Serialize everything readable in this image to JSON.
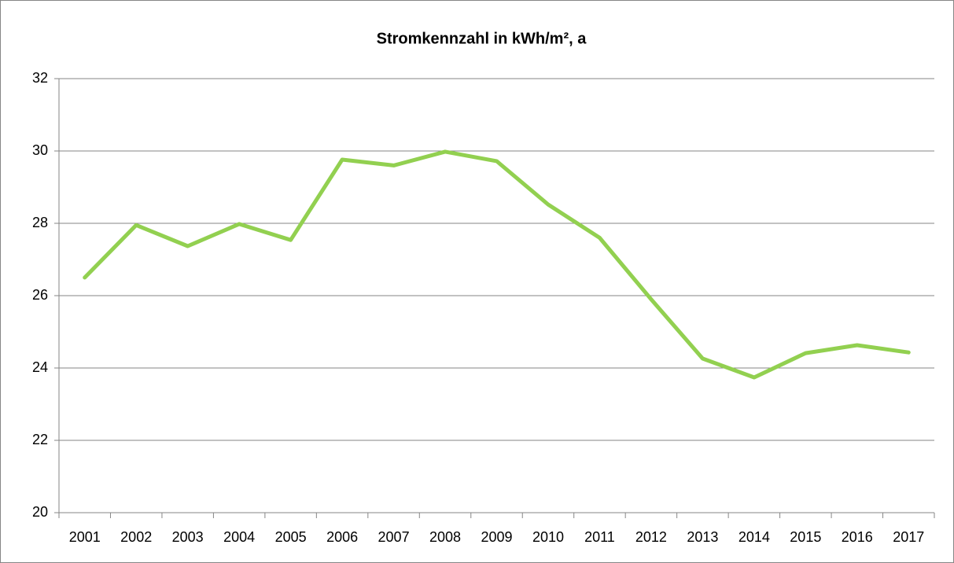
{
  "chart_data": {
    "type": "line",
    "title": "Stromkennzahl in kWh/m², a",
    "categories": [
      "2001",
      "2002",
      "2003",
      "2004",
      "2005",
      "2006",
      "2007",
      "2008",
      "2009",
      "2010",
      "2011",
      "2012",
      "2013",
      "2014",
      "2015",
      "2016",
      "2017"
    ],
    "values": [
      26.5,
      27.95,
      27.37,
      27.98,
      27.54,
      29.76,
      29.6,
      29.98,
      29.72,
      28.52,
      27.6,
      25.9,
      24.26,
      23.74,
      24.41,
      24.63,
      24.43
    ],
    "color": "#92d050",
    "ylim": [
      20,
      32
    ],
    "yticks": [
      20,
      22,
      24,
      26,
      28,
      30,
      32
    ],
    "grid": true
  }
}
